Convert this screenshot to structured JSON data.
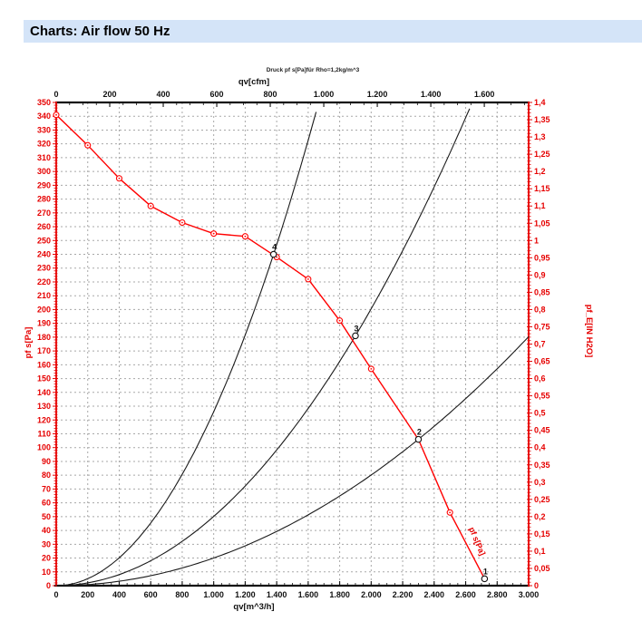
{
  "header": {
    "title": "Charts: Air flow 50 Hz",
    "background": "#d4e4f8"
  },
  "chart_data": {
    "type": "line",
    "title": "Druck pf s[Pa]für Rho=1,2kg/m^3",
    "grid": true,
    "colors": {
      "fan_curve": "#ff0000",
      "red_axis": "#e60000",
      "black_axis": "#111111",
      "system_curve": "#1a1a1a",
      "gridline": "#a8a8a8",
      "marker_fill": "#ffffff"
    },
    "axes": {
      "top": {
        "label": "qv[cfm]",
        "min": 0,
        "max": 1765.9,
        "cfm_to_m3h": 1.699011,
        "major_step": 200,
        "minor_step": 50,
        "tick_values": [
          0,
          200,
          400,
          600,
          800,
          1000,
          1200,
          1400,
          1600
        ],
        "tick_labels": [
          "0",
          "200",
          "400",
          "600",
          "800",
          "1.000",
          "1.200",
          "1.400",
          "1.600"
        ]
      },
      "bottom": {
        "label": "qv[m^3/h]",
        "min": 0,
        "max": 3000,
        "major_step": 200,
        "minor_step": 50,
        "tick_values": [
          0,
          200,
          400,
          600,
          800,
          1000,
          1200,
          1400,
          1600,
          1800,
          2000,
          2200,
          2400,
          2600,
          2800,
          3000
        ],
        "tick_labels": [
          "0",
          "200",
          "400",
          "600",
          "800",
          "1.000",
          "1.200",
          "1.400",
          "1.600",
          "1.800",
          "2.000",
          "2.200",
          "2.400",
          "2.600",
          "2.800",
          "3.000"
        ]
      },
      "left": {
        "label": "pf s[Pa]",
        "min": 0,
        "max": 350,
        "major_step": 10,
        "minor_step": 2,
        "tick_values": [
          0,
          10,
          20,
          30,
          40,
          50,
          60,
          70,
          80,
          90,
          100,
          110,
          120,
          130,
          140,
          150,
          160,
          170,
          180,
          190,
          200,
          210,
          220,
          230,
          240,
          250,
          260,
          270,
          280,
          290,
          300,
          310,
          320,
          330,
          340,
          350
        ],
        "tick_labels": [
          "0",
          "10",
          "20",
          "30",
          "40",
          "50",
          "60",
          "70",
          "80",
          "90",
          "100",
          "110",
          "120",
          "130",
          "140",
          "150",
          "160",
          "170",
          "180",
          "190",
          "200",
          "210",
          "220",
          "230",
          "240",
          "250",
          "260",
          "270",
          "280",
          "290",
          "300",
          "310",
          "320",
          "330",
          "340",
          "350"
        ]
      },
      "right": {
        "label": "pf_E[IN H2O]",
        "min": 0,
        "max": 1.4,
        "major_step": 0.05,
        "minor_step": 0.01,
        "tick_values": [
          0,
          0.05,
          0.1,
          0.15,
          0.2,
          0.25,
          0.3,
          0.35,
          0.4,
          0.45,
          0.5,
          0.55,
          0.6,
          0.65,
          0.7,
          0.75,
          0.8,
          0.85,
          0.9,
          0.95,
          1,
          1.05,
          1.1,
          1.15,
          1.2,
          1.25,
          1.3,
          1.35,
          1.4
        ],
        "tick_labels": [
          "0",
          "0,05",
          "0,1",
          "0,15",
          "0,2",
          "0,25",
          "0,3",
          "0,35",
          "0,4",
          "0,45",
          "0,5",
          "0,55",
          "0,6",
          "0,65",
          "0,7",
          "0,75",
          "0,8",
          "0,85",
          "0,9",
          "0,95",
          "1",
          "1,05",
          "1,1",
          "1,15",
          "1,2",
          "1,25",
          "1,3",
          "1,35",
          "1,4"
        ]
      }
    },
    "fan_curve": {
      "name": "pf s[Pa]",
      "inline_label": "pf s[Pa]",
      "color": "#ff0000",
      "points_qv_pf": [
        [
          0,
          341
        ],
        [
          200,
          319
        ],
        [
          400,
          295
        ],
        [
          600,
          275
        ],
        [
          800,
          263
        ],
        [
          1000,
          255
        ],
        [
          1200,
          253
        ],
        [
          1400,
          238
        ],
        [
          1600,
          222
        ],
        [
          1800,
          192
        ],
        [
          2000,
          157
        ],
        [
          2300,
          106
        ],
        [
          2500,
          53
        ],
        [
          2720,
          5
        ]
      ]
    },
    "system_curves": [
      {
        "through_qv": 1380,
        "through_pf": 240
      },
      {
        "through_qv": 1900,
        "through_pf": 181
      },
      {
        "through_qv": 2300,
        "through_pf": 106
      }
    ],
    "operating_points": [
      {
        "label": "1",
        "qv": 2720,
        "pf": 5
      },
      {
        "label": "2",
        "qv": 2300,
        "pf": 106
      },
      {
        "label": "3",
        "qv": 1900,
        "pf": 181
      },
      {
        "label": "4",
        "qv": 1380,
        "pf": 240
      }
    ]
  }
}
